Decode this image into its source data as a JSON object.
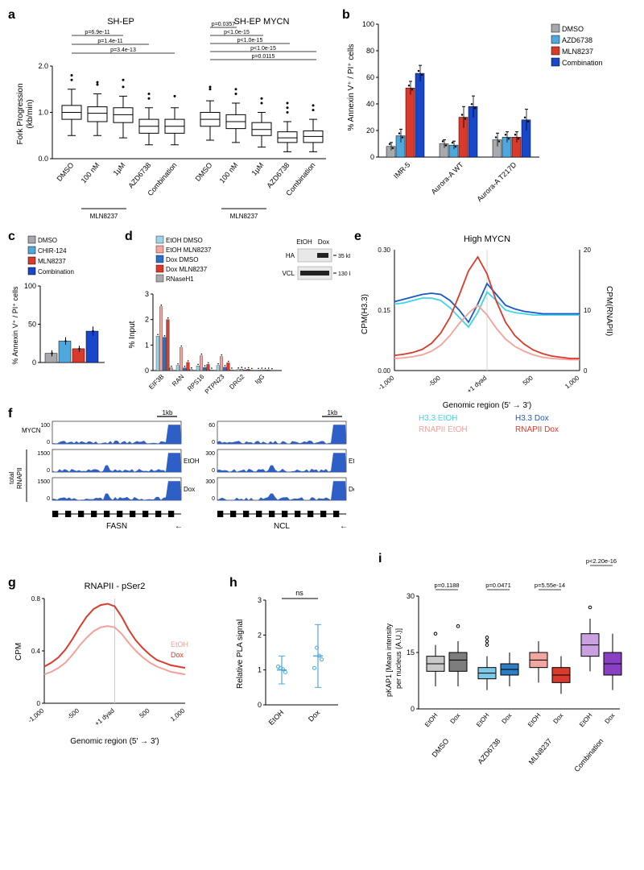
{
  "panel_a": {
    "label": "a",
    "ylabel": "Fork Progression\n(kb/min)",
    "ylim": [
      0,
      2.0
    ],
    "yticks": [
      0,
      1.0,
      2.0
    ],
    "groups": [
      "SH-EP",
      "SH-EP MYCN"
    ],
    "xlabels": [
      "DMSO",
      "100 nM",
      "1µM",
      "AZD6738",
      "Combination",
      "DMSO",
      "100 nM",
      "1µM",
      "AZD6738",
      "Combination"
    ],
    "sub_bracket": "MLN8237",
    "pvalues": [
      "p=6.9e-11",
      "p=1.4e-11",
      "p=3.4e-13",
      "p=0.0357",
      "p<1.0e-15",
      "p<1.0e-15",
      "p<1.0e-15",
      "p=0.0115"
    ],
    "boxes": [
      {
        "q1": 0.85,
        "med": 1.0,
        "q3": 1.15,
        "wl": 0.5,
        "wh": 1.5,
        "out": [
          1.7,
          1.8
        ]
      },
      {
        "q1": 0.8,
        "med": 0.98,
        "q3": 1.12,
        "wl": 0.5,
        "wh": 1.4,
        "out": [
          1.6,
          1.65
        ]
      },
      {
        "q1": 0.78,
        "med": 0.95,
        "q3": 1.1,
        "wl": 0.45,
        "wh": 1.35,
        "out": [
          1.55,
          1.7
        ]
      },
      {
        "q1": 0.55,
        "med": 0.7,
        "q3": 0.85,
        "wl": 0.3,
        "wh": 1.1,
        "out": [
          1.3,
          1.4
        ]
      },
      {
        "q1": 0.55,
        "med": 0.7,
        "q3": 0.85,
        "wl": 0.3,
        "wh": 1.1,
        "out": [
          1.35
        ]
      },
      {
        "q1": 0.7,
        "med": 0.85,
        "q3": 1.0,
        "wl": 0.4,
        "wh": 1.25,
        "out": [
          1.5,
          1.55
        ]
      },
      {
        "q1": 0.65,
        "med": 0.8,
        "q3": 0.95,
        "wl": 0.35,
        "wh": 1.2,
        "out": [
          1.4,
          1.5
        ]
      },
      {
        "q1": 0.5,
        "med": 0.63,
        "q3": 0.78,
        "wl": 0.25,
        "wh": 1.0,
        "out": [
          1.2,
          1.3
        ]
      },
      {
        "q1": 0.35,
        "med": 0.45,
        "q3": 0.58,
        "wl": 0.15,
        "wh": 0.8,
        "out": [
          1.0,
          1.1,
          1.2
        ]
      },
      {
        "q1": 0.35,
        "med": 0.48,
        "q3": 0.6,
        "wl": 0.15,
        "wh": 0.85,
        "out": [
          1.05,
          1.15
        ]
      }
    ]
  },
  "panel_b": {
    "label": "b",
    "ylabel": "% Annexin V⁺ / PI⁺ cells",
    "ylim": [
      0,
      100
    ],
    "yticks": [
      0,
      20,
      40,
      60,
      80,
      100
    ],
    "groups": [
      "IMR-5",
      "Aurora-A WT",
      "Aurora-A T217D"
    ],
    "legend": [
      {
        "label": "DMSO",
        "color": "#a7a9ac"
      },
      {
        "label": "AZD6738",
        "color": "#4fa8dd"
      },
      {
        "label": "MLN8237",
        "color": "#d93a2b"
      },
      {
        "label": "Combination",
        "color": "#1847c9"
      }
    ],
    "values": [
      [
        8,
        16,
        52,
        63
      ],
      [
        10,
        9,
        30,
        38
      ],
      [
        13,
        15,
        15,
        28
      ]
    ],
    "err": [
      [
        3,
        5,
        5,
        6
      ],
      [
        3,
        3,
        8,
        8
      ],
      [
        5,
        4,
        4,
        8
      ]
    ]
  },
  "panel_c": {
    "label": "c",
    "ylabel": "% Annexin V⁺ / PI⁺ cells",
    "ylim": [
      0,
      100
    ],
    "yticks": [
      0,
      50,
      100
    ],
    "legend": [
      {
        "label": "DMSO",
        "color": "#a7a9ac"
      },
      {
        "label": "CHIR-124",
        "color": "#4fa8dd"
      },
      {
        "label": "MLN8237",
        "color": "#d93a2b"
      },
      {
        "label": "Combination",
        "color": "#1847c9"
      }
    ],
    "values": [
      12,
      28,
      18,
      41
    ],
    "err": [
      4,
      5,
      4,
      6
    ]
  },
  "panel_d": {
    "label": "d",
    "ylabel": "% Input",
    "ylim": [
      0,
      3
    ],
    "yticks": [
      0,
      1,
      2,
      3
    ],
    "xlabels": [
      "EIF3B",
      "RAN",
      "RPS16",
      "PTPN23",
      "DRG2",
      "IgG"
    ],
    "legend": [
      {
        "label": "EtOH DMSO",
        "color": "#9fd4e8"
      },
      {
        "label": "EtOH MLN8237",
        "color": "#f2a6a0"
      },
      {
        "label": "Dox DMSO",
        "color": "#2e6fc6"
      },
      {
        "label": "Dox MLN8237",
        "color": "#d93a2b"
      },
      {
        "label": "RNaseH1",
        "color": "#a7a9ac"
      }
    ],
    "values": [
      [
        1.35,
        2.5,
        1.3,
        2.0,
        0.1
      ],
      [
        0.2,
        0.9,
        0.1,
        0.32,
        0.04
      ],
      [
        0.18,
        0.58,
        0.12,
        0.24,
        0.03
      ],
      [
        0.2,
        0.55,
        0.13,
        0.3,
        0.03
      ],
      [
        0.04,
        0.06,
        0.03,
        0.05,
        0.02
      ],
      [
        0.02,
        0.03,
        0.02,
        0.03,
        0.01
      ]
    ],
    "blot": {
      "labels": [
        "EtOH",
        "Dox"
      ],
      "rows": [
        {
          "name": "HA",
          "size": "35 kDa"
        },
        {
          "name": "VCL",
          "size": "130 kDa"
        }
      ]
    }
  },
  "panel_e": {
    "label": "e",
    "title": "High MYCN",
    "ylabel_left": "CPM(H3.3)",
    "ylabel_right": "CPM(RNAPII)",
    "xlabel": "Genomic region (5' → 3')",
    "xlim": [
      -1000,
      1000
    ],
    "xticks": [
      "-1,000",
      "-500",
      "+1 dyad",
      "500",
      "1,000"
    ],
    "yticks_left": [
      0.0,
      0.15,
      0.3
    ],
    "yticks_right": [
      0,
      10,
      20
    ],
    "legend": [
      {
        "label": "H3.3 EtOH",
        "color": "#3fd4e8"
      },
      {
        "label": "H3.3 Dox",
        "color": "#1a57c9"
      },
      {
        "label": "RNAPII EtOH",
        "color": "#f5a09a"
      },
      {
        "label": "RNAPII Dox",
        "color": "#d93a2b"
      }
    ]
  },
  "panel_f": {
    "label": "f",
    "tracks": [
      {
        "gene": "FASN",
        "scale": "1kb",
        "rows": [
          {
            "name": "MYCN",
            "ymax": 100
          },
          {
            "name": "total RNAPII",
            "sub": "EtOH",
            "ymax": 1500
          },
          {
            "name": "",
            "sub": "Dox",
            "ymax": 1500
          }
        ]
      },
      {
        "gene": "NCL",
        "scale": "1kb",
        "rows": [
          {
            "name": "",
            "ymax": 60
          },
          {
            "name": "",
            "sub": "EtOH",
            "ymax": 300
          },
          {
            "name": "",
            "sub": "Dox",
            "ymax": 300
          }
        ]
      }
    ]
  },
  "panel_g": {
    "label": "g",
    "title": "RNAPII - pSer2",
    "ylabel": "CPM",
    "xlabel": "Genomic region (5' → 3')",
    "xticks": [
      "-1,000",
      "-500",
      "+1 dyad",
      "500",
      "1,000"
    ],
    "yticks": [
      0,
      0.4,
      0.8
    ],
    "legend": [
      {
        "label": "EtOH",
        "color": "#f5a09a"
      },
      {
        "label": "Dox",
        "color": "#d93a2b"
      }
    ]
  },
  "panel_h": {
    "label": "h",
    "ylabel": "Relative PLA signal",
    "yticks": [
      0,
      1,
      2,
      3
    ],
    "xlabels": [
      "EtOH",
      "Dox"
    ],
    "ns": "ns",
    "values": [
      1.0,
      1.4
    ],
    "err": [
      0.4,
      0.9
    ],
    "color": "#4fa8dd"
  },
  "panel_i": {
    "label": "i",
    "ylabel": "pKAP1 [Mean intensity\nper nucleus (A.U.)]",
    "ylim": [
      0,
      30
    ],
    "yticks": [
      0,
      15,
      30
    ],
    "groups": [
      "DMSO",
      "AZD6738",
      "MLN8237",
      "Combination"
    ],
    "sublabels": [
      "EtOH",
      "Dox"
    ],
    "colors": [
      [
        "#c9c9c9",
        "#7d7d7d"
      ],
      [
        "#7ec9e8",
        "#2e7ec6"
      ],
      [
        "#f2a6a0",
        "#d93a2b"
      ],
      [
        "#c9a0e0",
        "#8a3fc6"
      ]
    ],
    "pvalues": [
      "p=0.1188",
      "p=0.0471",
      "p=5.55e-14",
      "p<2.20e-16"
    ],
    "boxes": [
      {
        "q1": 10,
        "med": 12,
        "q3": 14,
        "wl": 6,
        "wh": 17,
        "out": [
          20
        ]
      },
      {
        "q1": 10,
        "med": 13,
        "q3": 15,
        "wl": 6,
        "wh": 18,
        "out": [
          22
        ]
      },
      {
        "q1": 8,
        "med": 9.5,
        "q3": 11,
        "wl": 5,
        "wh": 14,
        "out": [
          17,
          18,
          19
        ]
      },
      {
        "q1": 9,
        "med": 10.5,
        "q3": 12,
        "wl": 6,
        "wh": 15,
        "out": []
      },
      {
        "q1": 11,
        "med": 13,
        "q3": 15,
        "wl": 7,
        "wh": 18,
        "out": []
      },
      {
        "q1": 7,
        "med": 9,
        "q3": 11,
        "wl": 4,
        "wh": 14,
        "out": []
      },
      {
        "q1": 14,
        "med": 17,
        "q3": 20,
        "wl": 10,
        "wh": 24,
        "out": [
          27
        ]
      },
      {
        "q1": 9,
        "med": 12,
        "q3": 15,
        "wl": 5,
        "wh": 20,
        "out": []
      }
    ]
  }
}
